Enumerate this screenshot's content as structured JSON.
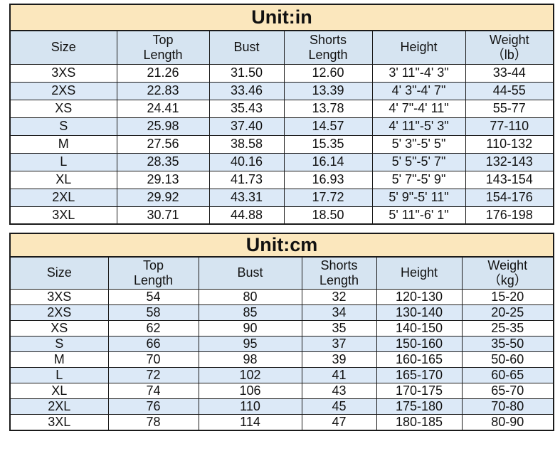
{
  "colors": {
    "title_bg": "#FBE7BD",
    "header_bg": "#D6E4F1",
    "row_alt_bg": "#DCE9F7",
    "row_bg": "#FFFFFF",
    "grid_line": "#1A1A1A",
    "text": "#111111"
  },
  "tables": [
    {
      "title": "Unit:in",
      "headers": [
        "Size",
        "Top\nLength",
        "Bust",
        "Shorts\nLength",
        "Height",
        "Weight\n（lb）"
      ],
      "rows": [
        [
          "3XS",
          "21.26",
          "31.50",
          "12.60",
          "3' 11\"-4' 3\"",
          "33-44"
        ],
        [
          "2XS",
          "22.83",
          "33.46",
          "13.39",
          "4' 3\"-4' 7\"",
          "44-55"
        ],
        [
          "XS",
          "24.41",
          "35.43",
          "13.78",
          "4' 7\"-4' 11\"",
          "55-77"
        ],
        [
          "S",
          "25.98",
          "37.40",
          "14.57",
          "4' 11\"-5' 3\"",
          "77-110"
        ],
        [
          "M",
          "27.56",
          "38.58",
          "15.35",
          "5' 3\"-5' 5\"",
          "110-132"
        ],
        [
          "L",
          "28.35",
          "40.16",
          "16.14",
          "5' 5\"-5' 7\"",
          "132-143"
        ],
        [
          "XL",
          "29.13",
          "41.73",
          "16.93",
          "5' 7\"-5' 9\"",
          "143-154"
        ],
        [
          "2XL",
          "29.92",
          "43.31",
          "17.72",
          "5' 9\"-5' 11\"",
          "154-176"
        ],
        [
          "3XL",
          "30.71",
          "44.88",
          "18.50",
          "5' 11\"-6' 1\"",
          "176-198"
        ]
      ]
    },
    {
      "title": "Unit:cm",
      "headers": [
        "Size",
        "Top\nLength",
        "Bust",
        "Shorts\nLength",
        "Height",
        "Weight\n（kg）"
      ],
      "rows": [
        [
          "3XS",
          "54",
          "80",
          "32",
          "120-130",
          "15-20"
        ],
        [
          "2XS",
          "58",
          "85",
          "34",
          "130-140",
          "20-25"
        ],
        [
          "XS",
          "62",
          "90",
          "35",
          "140-150",
          "25-35"
        ],
        [
          "S",
          "66",
          "95",
          "37",
          "150-160",
          "35-50"
        ],
        [
          "M",
          "70",
          "98",
          "39",
          "160-165",
          "50-60"
        ],
        [
          "L",
          "72",
          "102",
          "41",
          "165-170",
          "60-65"
        ],
        [
          "XL",
          "74",
          "106",
          "43",
          "170-175",
          "65-70"
        ],
        [
          "2XL",
          "76",
          "110",
          "45",
          "175-180",
          "70-80"
        ],
        [
          "3XL",
          "78",
          "114",
          "47",
          "180-185",
          "80-90"
        ]
      ]
    }
  ]
}
